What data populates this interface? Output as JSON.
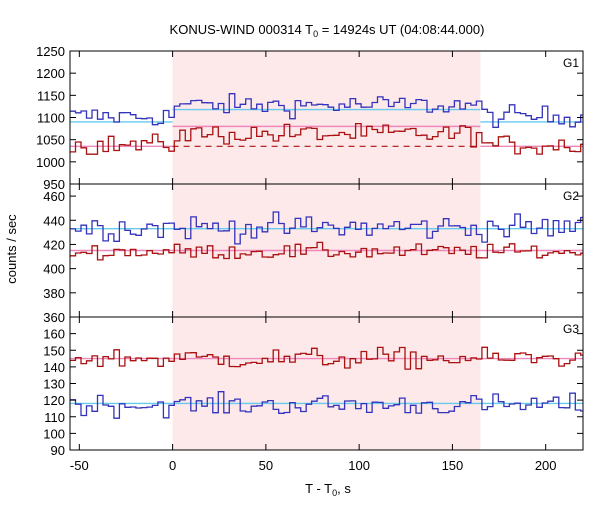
{
  "chart_data": {
    "type": "line",
    "title_main": "KONUS-WIND 000314 T",
    "title_sub": "0",
    "title_rest": " = 14924s UT (04:08:44.000)",
    "xlabel_main": "T - T",
    "xlabel_sub": "0",
    "xlabel_rest": ", s",
    "ylabel": "counts / sec",
    "x_ticks": [
      -50,
      0,
      50,
      100,
      150,
      200
    ],
    "xlim": [
      -55,
      220
    ],
    "highlight_interval": [
      0,
      165
    ],
    "colors": {
      "series_a": "#3333bb",
      "series_b": "#aa1111",
      "fit_a": "#66ccee",
      "fit_b": "#ee88bb",
      "highlight": "#fde8ea",
      "axis": "#000000"
    },
    "panels": [
      {
        "name": "G1",
        "ylim": [
          950,
          1250
        ],
        "y_ticks": [
          950,
          1000,
          1050,
          1100,
          1150,
          1200,
          1250
        ],
        "fit_a": 1090,
        "fit_b": 1035,
        "fit_a_level": 1118,
        "fit_b_level": 1080,
        "dashed_b_level": 1035,
        "series_a_mean": 1110,
        "series_a_noise": 22,
        "series_b_mean": 1045,
        "series_b_noise": 22
      },
      {
        "name": "G2",
        "ylim": [
          360,
          470
        ],
        "y_ticks": [
          360,
          380,
          400,
          420,
          440,
          460
        ],
        "fit_a": 433,
        "fit_b": 415,
        "series_a_mean": 434,
        "series_a_noise": 10,
        "series_b_mean": 414,
        "series_b_noise": 6
      },
      {
        "name": "G3",
        "ylim": [
          90,
          170
        ],
        "y_ticks": [
          90,
          100,
          110,
          120,
          130,
          140,
          150,
          160
        ],
        "fit_a": 118,
        "fit_b": 145,
        "series_a_mean": 117,
        "series_a_noise": 6,
        "series_b_mean": 145,
        "series_b_noise": 6
      }
    ]
  }
}
